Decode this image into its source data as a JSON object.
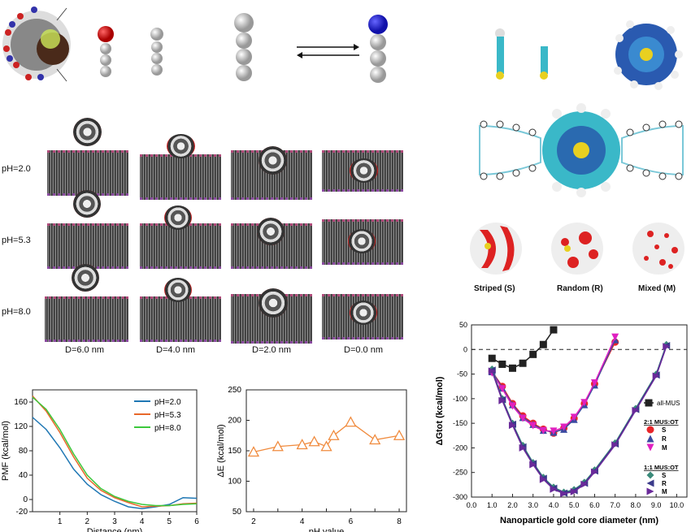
{
  "simulation": {
    "rows": [
      {
        "label": "pH=2.0"
      },
      {
        "label": "pH=5.3"
      },
      {
        "label": "pH=8.0"
      }
    ],
    "columns": [
      {
        "label": "D=6.0 nm"
      },
      {
        "label": "D=4.0 nm"
      },
      {
        "label": "D=2.0 nm"
      },
      {
        "label": "D=0.0 nm"
      }
    ]
  },
  "patterns": {
    "labels": [
      "Striped (S)",
      "Random (R)",
      "Mixed (M)"
    ]
  },
  "colors": {
    "ph2": "#1f77b4",
    "ph53": "#e8682a",
    "ph8": "#3cc83c",
    "orange": "#f08a3c",
    "black": "#222222",
    "red": "#e8252a",
    "blue": "#3a4aa0",
    "magenta": "#e020c0",
    "teal": "#3a8a7a",
    "navy": "#3a3a8a",
    "purple": "#6a2a9a"
  },
  "chart_data": [
    {
      "type": "line",
      "xlabel": "Distance (nm)",
      "ylabel": "PMF (kcal/mol)",
      "xlim": [
        0,
        6
      ],
      "ylim": [
        -20,
        180
      ],
      "xticks": [
        "1",
        "2",
        "3",
        "4",
        "5",
        "6"
      ],
      "yticks": [
        "-20",
        "0",
        "40",
        "80",
        "120",
        "160"
      ],
      "legend_position": "top-right",
      "series": [
        {
          "name": "pH=2.0",
          "x": [
            0,
            0.5,
            1,
            1.5,
            2,
            2.5,
            3,
            3.5,
            4,
            4.5,
            5,
            5.5,
            6
          ],
          "y": [
            135,
            115,
            85,
            50,
            25,
            8,
            -3,
            -12,
            -15,
            -12,
            -8,
            3,
            2
          ]
        },
        {
          "name": "pH=5.3",
          "x": [
            0,
            0.5,
            1,
            1.5,
            2,
            2.5,
            3,
            3.5,
            4,
            4.5,
            5,
            5.5,
            6
          ],
          "y": [
            170,
            145,
            110,
            70,
            35,
            15,
            3,
            -5,
            -12,
            -11,
            -10,
            -7,
            -6
          ]
        },
        {
          "name": "pH=8.0",
          "x": [
            0,
            0.5,
            1,
            1.5,
            2,
            2.5,
            3,
            3.5,
            4,
            4.5,
            5,
            5.5,
            6
          ],
          "y": [
            168,
            148,
            115,
            75,
            40,
            18,
            5,
            -3,
            -8,
            -10,
            -10,
            -8,
            -7
          ]
        }
      ]
    },
    {
      "type": "line",
      "xlabel": "pH value",
      "ylabel": "ΔE (kcal/mol)",
      "xlim": [
        1.7,
        8.3
      ],
      "ylim": [
        50,
        250
      ],
      "xticks": [
        "2",
        "3",
        "4",
        "5",
        "6",
        "7",
        "8"
      ],
      "yticks": [
        "50",
        "100",
        "150",
        "200",
        "250"
      ],
      "series": [
        {
          "x": [
            2,
            3,
            4,
            4.5,
            5,
            5.3,
            6,
            7,
            8
          ],
          "y": [
            148,
            157,
            160,
            165,
            157,
            175,
            197,
            168,
            175
          ]
        }
      ]
    },
    {
      "type": "line",
      "xlabel": "Nanoparticle gold core diameter (nm)",
      "ylabel": "ΔGtot (kcal/mol)",
      "xlim": [
        0,
        10.5
      ],
      "ylim": [
        -300,
        50
      ],
      "xticks": [
        "0.0",
        "1.0",
        "2.0",
        "3.0",
        "4.0",
        "5.0",
        "6.0",
        "7.0",
        "8.0",
        "9.0",
        "10.0"
      ],
      "yticks": [
        "50",
        "0",
        "-50",
        "-100",
        "-150",
        "-200",
        "-250",
        "-300"
      ],
      "legend": {
        "main": "all-MUS",
        "group1_title": "2:1 MUS:OT",
        "group1_items": [
          "S",
          "R",
          "M"
        ],
        "group2_title": "1:1 MUS:OT",
        "group2_items": [
          "S",
          "R",
          "M"
        ]
      },
      "series": [
        {
          "name": "all-MUS",
          "x": [
            1,
            1.5,
            2,
            2.5,
            3,
            3.5,
            4
          ],
          "y": [
            -18,
            -30,
            -38,
            -28,
            -10,
            10,
            40
          ]
        },
        {
          "name": "S",
          "x": [
            1,
            1.5,
            2,
            2.5,
            3,
            3.5,
            4,
            4.5,
            5,
            5.5,
            6,
            7
          ],
          "y": [
            -45,
            -75,
            -110,
            -135,
            -150,
            -162,
            -170,
            -160,
            -140,
            -110,
            -70,
            15
          ]
        },
        {
          "name": "R",
          "x": [
            1,
            1.5,
            2,
            2.5,
            3,
            3.5,
            4,
            4.5,
            5,
            5.5,
            6,
            7
          ],
          "y": [
            -45,
            -78,
            -112,
            -138,
            -152,
            -164,
            -168,
            -162,
            -142,
            -112,
            -72,
            20
          ]
        },
        {
          "name": "M",
          "x": [
            1,
            1.5,
            2,
            2.5,
            3,
            3.5,
            4,
            4.5,
            5,
            5.5,
            6,
            7
          ],
          "y": [
            -48,
            -80,
            -115,
            -140,
            -155,
            -165,
            -166,
            -158,
            -138,
            -108,
            -68,
            25
          ]
        },
        {
          "name": "S",
          "x": [
            1,
            1.5,
            2,
            2.5,
            3,
            3.5,
            4,
            4.5,
            5,
            5.5,
            6,
            7,
            8,
            9,
            9.5
          ],
          "y": [
            -40,
            -100,
            -150,
            -195,
            -230,
            -260,
            -280,
            -290,
            -285,
            -270,
            -245,
            -190,
            -120,
            -50,
            10
          ]
        },
        {
          "name": "R",
          "x": [
            1,
            1.5,
            2,
            2.5,
            3,
            3.5,
            4,
            4.5,
            5,
            5.5,
            6,
            7,
            8,
            9,
            9.5
          ],
          "y": [
            -42,
            -102,
            -152,
            -198,
            -232,
            -262,
            -282,
            -292,
            -287,
            -272,
            -247,
            -192,
            -122,
            -52,
            8
          ]
        },
        {
          "name": "M",
          "x": [
            1,
            1.5,
            2,
            2.5,
            3,
            3.5,
            4,
            4.5,
            5,
            5.5,
            6,
            7,
            8,
            9,
            9.5
          ],
          "y": [
            -44,
            -104,
            -154,
            -200,
            -234,
            -264,
            -284,
            -293,
            -289,
            -274,
            -249,
            -194,
            -124,
            -54,
            6
          ]
        }
      ]
    }
  ]
}
